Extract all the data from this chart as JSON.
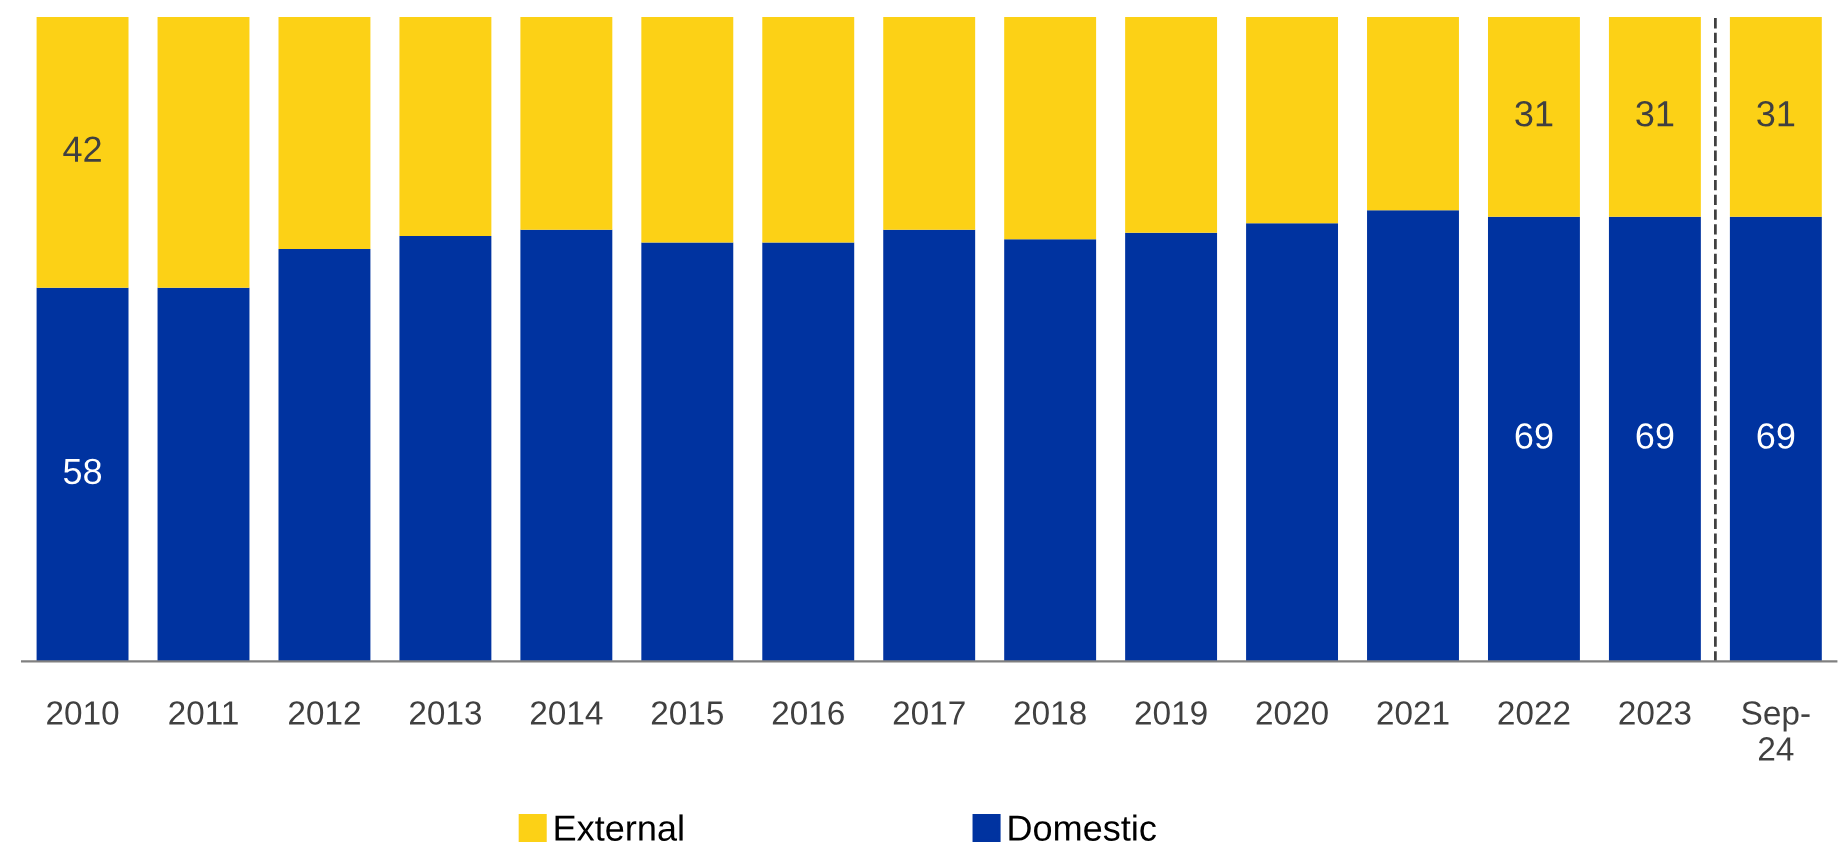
{
  "chart_data": {
    "type": "bar",
    "stacked": true,
    "categories": [
      "2010",
      "2011",
      "2012",
      "2013",
      "2014",
      "2015",
      "2016",
      "2017",
      "2018",
      "2019",
      "2020",
      "2021",
      "2022",
      "2023",
      "Sep-\n24"
    ],
    "series": [
      {
        "name": "Domestic",
        "color": "#0033a0",
        "values": [
          58,
          58,
          64,
          66,
          67,
          65,
          65,
          67,
          65.5,
          66.5,
          68,
          70,
          69,
          69,
          69
        ],
        "value_labels": [
          "58",
          null,
          null,
          null,
          null,
          null,
          null,
          null,
          null,
          null,
          null,
          null,
          "69",
          "69",
          "69"
        ]
      },
      {
        "name": "External",
        "color": "#fcd116",
        "values": [
          42,
          42,
          36,
          34,
          33,
          35,
          35,
          33,
          34.5,
          33.5,
          32,
          30,
          31,
          31,
          31
        ],
        "value_labels": [
          "42",
          null,
          null,
          null,
          null,
          null,
          null,
          null,
          null,
          null,
          null,
          null,
          "31",
          "31",
          "31"
        ]
      }
    ],
    "ylim": [
      0,
      100
    ],
    "tick_labels": "x",
    "grid": false,
    "legend": "bottom"
  }
}
